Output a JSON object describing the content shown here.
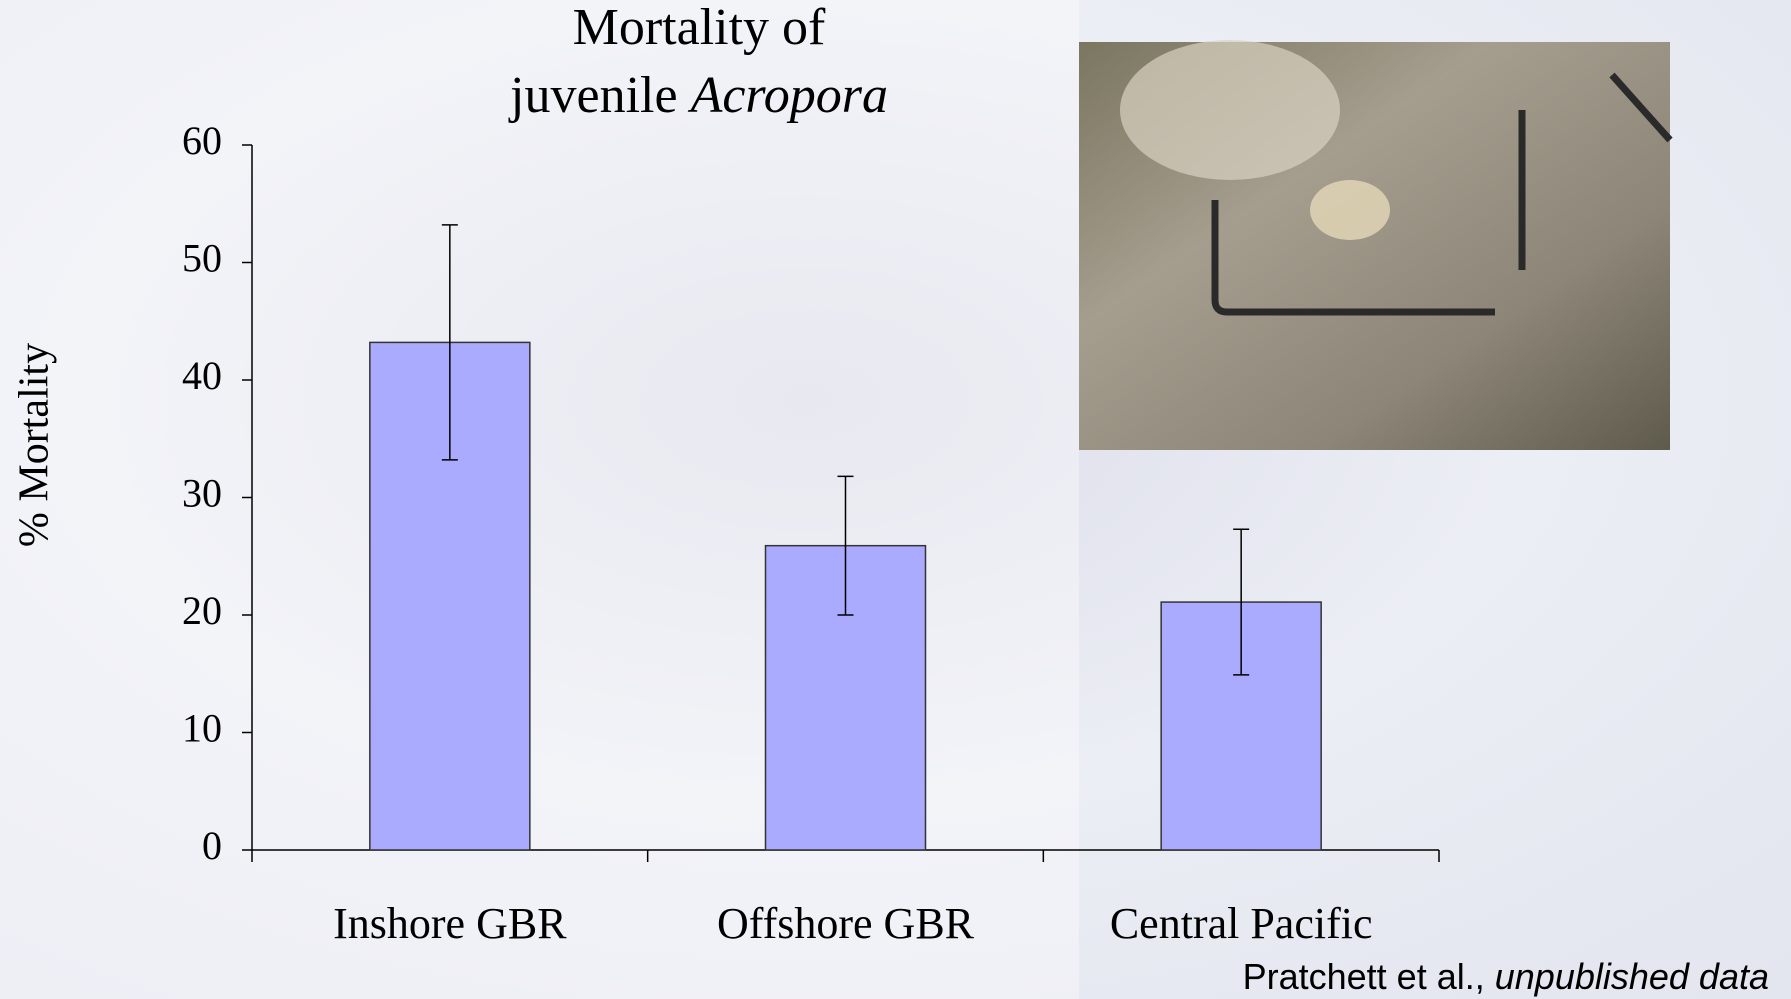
{
  "chart_data": {
    "type": "bar",
    "title": {
      "line1": "Mortality of",
      "line2": "juvenile",
      "italic": "Acropora"
    },
    "y_label": "% Mortality",
    "categories": [
      "Inshore GBR",
      "Offshore GBR",
      "Central Pacific"
    ],
    "values": [
      43.2,
      25.9,
      21.1
    ],
    "errors": [
      10,
      5.9,
      6.2
    ],
    "color": "#aaaaff",
    "ylim": [
      0,
      60
    ],
    "yticks": [
      0,
      10,
      20,
      30,
      40,
      50,
      60
    ],
    "credit": {
      "text": "Pratchett et al.,",
      "italic": "unpublished data"
    }
  }
}
